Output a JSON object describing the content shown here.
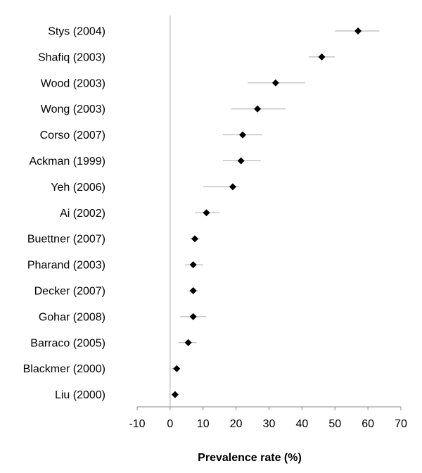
{
  "chart_data": {
    "type": "scatter",
    "subtype": "forest-plot",
    "title": "",
    "xlabel": "Prevalence rate (%)",
    "ylabel": "",
    "xlim": [
      -10,
      70
    ],
    "xticks": [
      -10,
      0,
      10,
      20,
      30,
      40,
      50,
      60,
      70
    ],
    "grid": false,
    "legend": "none",
    "marker": "diamond",
    "colors": {
      "marker": "#000000",
      "ci": "#aaaaaa",
      "axis": "#888888",
      "reference": "#aaaaaa"
    },
    "studies": [
      {
        "label": "Stys (2004)",
        "value": 57,
        "ci": [
          50,
          63.5
        ]
      },
      {
        "label": "Shafiq (2003)",
        "value": 46,
        "ci": [
          42,
          50
        ]
      },
      {
        "label": "Wood (2003)",
        "value": 32,
        "ci": [
          23.5,
          41
        ]
      },
      {
        "label": "Wong (2003)",
        "value": 26.5,
        "ci": [
          18.5,
          35
        ]
      },
      {
        "label": "Corso (2007)",
        "value": 22,
        "ci": [
          16,
          28
        ]
      },
      {
        "label": "Ackman (1999)",
        "value": 21.5,
        "ci": [
          16,
          27.5
        ]
      },
      {
        "label": "Yeh (2006)",
        "value": 19,
        "ci": [
          10,
          21
        ]
      },
      {
        "label": "Ai (2002)",
        "value": 11,
        "ci": [
          7.5,
          15
        ]
      },
      {
        "label": "Buettner (2007)",
        "value": 7.5,
        "ci": [
          6,
          9
        ]
      },
      {
        "label": "Pharand (2003)",
        "value": 7,
        "ci": [
          4.5,
          10
        ]
      },
      {
        "label": "Decker (2007)",
        "value": 7,
        "ci": [
          5.5,
          8.5
        ]
      },
      {
        "label": "Gohar (2008)",
        "value": 7,
        "ci": [
          3,
          11
        ]
      },
      {
        "label": "Barraco (2005)",
        "value": 5.5,
        "ci": [
          2.5,
          8
        ]
      },
      {
        "label": "Blackmer (2000)",
        "value": 2,
        "ci": [
          0.5,
          3
        ]
      },
      {
        "label": "Liu (2000)",
        "value": 1.5,
        "ci": [
          0.5,
          2.5
        ]
      }
    ]
  }
}
